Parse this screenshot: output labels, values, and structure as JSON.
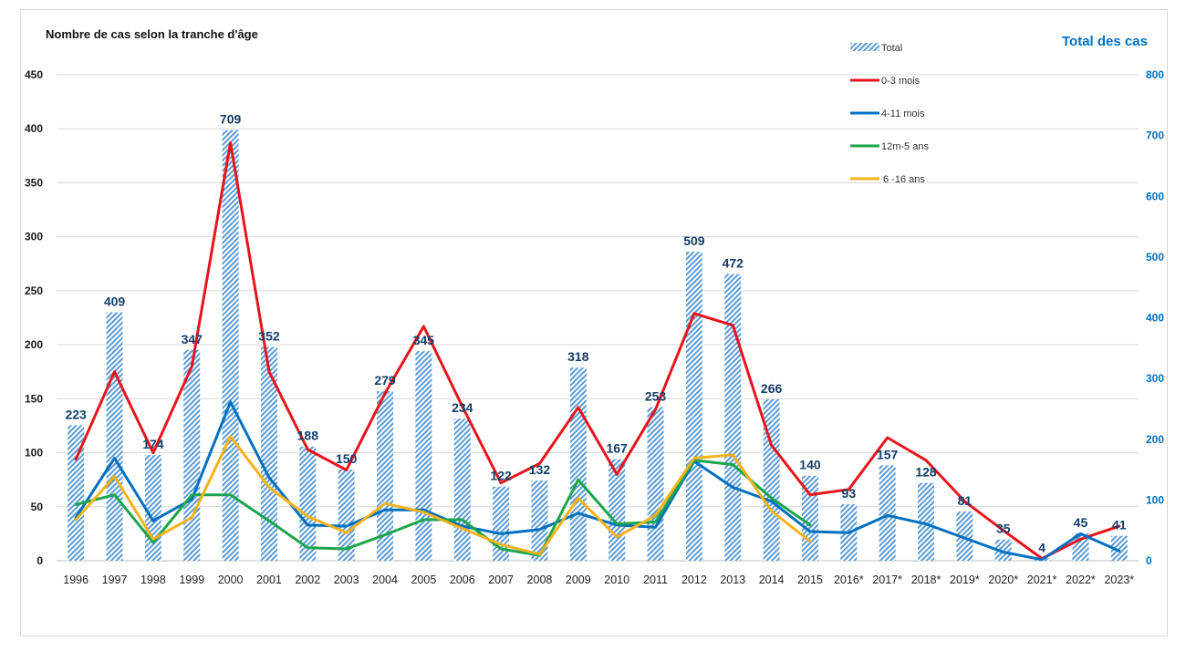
{
  "chart_data": {
    "type": "bar+line",
    "title_left": "Nombre de cas selon la tranche d'âge",
    "title_right": "Total des cas",
    "categories": [
      "1996",
      "1997",
      "1998",
      "1999",
      "2000",
      "2001",
      "2002",
      "2003",
      "2004",
      "2005",
      "2006",
      "2007",
      "2008",
      "2009",
      "2010",
      "2011",
      "2012",
      "2013",
      "2014",
      "2015",
      "2016*",
      "2017*",
      "2018*",
      "2019*",
      "2020*",
      "2021*",
      "2022*",
      "2023*"
    ],
    "y_left": {
      "ylim": [
        0,
        450
      ],
      "ticks": [
        "0",
        "50",
        "100",
        "150",
        "200",
        "250",
        "300",
        "350",
        "400",
        "450"
      ]
    },
    "y_right": {
      "ylim": [
        0,
        800
      ],
      "ticks": [
        "0",
        "100",
        "200",
        "300",
        "400",
        "500",
        "600",
        "700",
        "800"
      ]
    },
    "bars": {
      "name": "Total",
      "axis": "right",
      "color": "#5b9bd5",
      "values": [
        223,
        409,
        174,
        347,
        709,
        352,
        188,
        150,
        279,
        345,
        234,
        122,
        132,
        318,
        167,
        253,
        509,
        472,
        266,
        140,
        93,
        157,
        128,
        81,
        35,
        4,
        45,
        41
      ],
      "labels": [
        "223",
        "409",
        "174",
        "347",
        "709",
        "352",
        "188",
        "150",
        "279",
        "345",
        "234",
        "122",
        "132",
        "318",
        "167",
        "253",
        "509",
        "472",
        "266",
        "140",
        "93",
        "157",
        "128",
        "81",
        "35",
        "4",
        "45",
        "41"
      ]
    },
    "series": [
      {
        "name": "0-3 mois",
        "color": "#e8141c",
        "values": [
          94,
          175,
          100,
          180,
          387,
          175,
          103,
          84,
          155,
          217,
          143,
          72,
          90,
          142,
          80,
          140,
          229,
          218,
          107,
          61,
          66,
          114,
          93,
          55,
          28,
          2,
          20,
          32
        ]
      },
      {
        "name": "4-11 mois",
        "color": "#0070c0",
        "values": [
          40,
          95,
          37,
          57,
          147,
          77,
          33,
          32,
          47,
          47,
          32,
          25,
          29,
          44,
          33,
          31,
          92,
          68,
          55,
          27,
          26,
          42,
          34,
          21,
          8,
          1,
          25,
          9
        ]
      },
      {
        "name": "12m-5 ans",
        "color": "#1aa64a",
        "values": [
          52,
          61,
          17,
          61,
          61,
          37,
          12,
          11,
          24,
          38,
          38,
          11,
          5,
          75,
          34,
          36,
          93,
          89,
          58,
          33,
          null,
          null,
          null,
          null,
          null,
          null,
          null,
          null
        ]
      },
      {
        "name": "6 -16 ans",
        "color": "#f5b21a",
        "values": [
          38,
          78,
          20,
          40,
          115,
          68,
          41,
          26,
          53,
          45,
          30,
          15,
          6,
          58,
          22,
          42,
          95,
          98,
          46,
          18,
          null,
          null,
          null,
          null,
          null,
          null,
          null,
          null
        ]
      }
    ],
    "legend_position": "top-right"
  }
}
